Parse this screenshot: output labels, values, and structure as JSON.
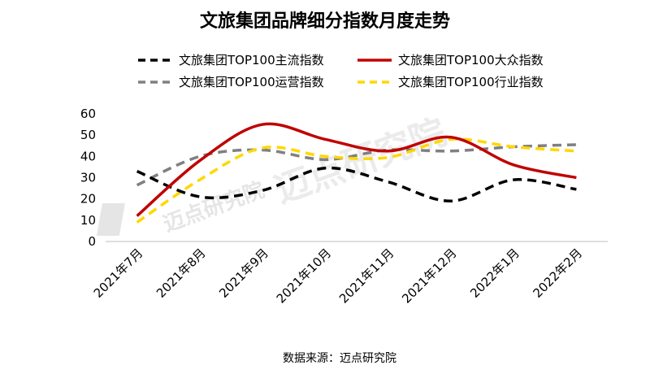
{
  "source_note": "数据来源：迈点研究院",
  "watermark": "迈点研究院",
  "chart_data": {
    "type": "line",
    "title": "文旅集团品牌细分指数月度走势",
    "categories": [
      "2021年7月",
      "2021年8月",
      "2021年9月",
      "2021年10月",
      "2021年11月",
      "2021年12月",
      "2022年1月",
      "2022年2月"
    ],
    "ylim": [
      0,
      60
    ],
    "yticks": [
      0,
      10,
      20,
      30,
      40,
      50,
      60
    ],
    "grid": false,
    "legend_position": "top",
    "series": [
      {
        "name": "文旅集团TOP100主流指数",
        "color": "#000000",
        "dash": "dashed",
        "values": [
          33,
          21,
          24,
          34.5,
          28,
          19,
          29,
          24.5
        ]
      },
      {
        "name": "文旅集团TOP100大众指数",
        "color": "#c00000",
        "dash": "solid",
        "values": [
          12,
          38,
          55,
          48,
          42.5,
          49,
          36,
          30
        ]
      },
      {
        "name": "文旅集团TOP100运营指数",
        "color": "#808080",
        "dash": "dashed",
        "values": [
          26.5,
          40,
          43,
          38.5,
          43,
          42.5,
          44.5,
          45.5
        ]
      },
      {
        "name": "文旅集团TOP100行业指数",
        "color": "#ffd700",
        "dash": "dashed",
        "values": [
          9,
          29,
          44,
          40,
          39.5,
          48,
          44.5,
          42.5
        ]
      }
    ]
  }
}
